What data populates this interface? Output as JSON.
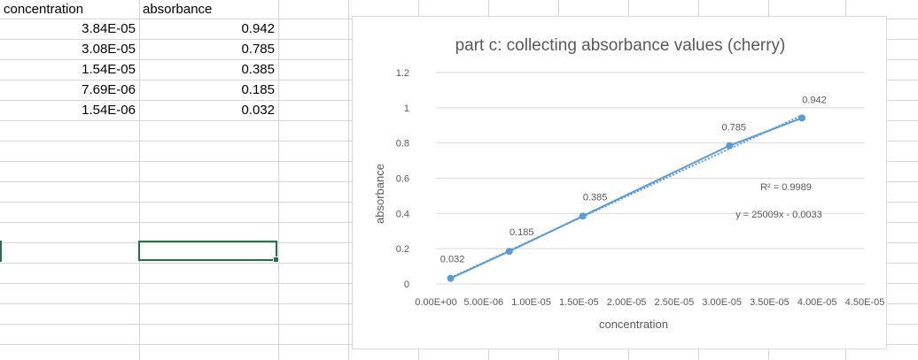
{
  "sheet": {
    "headers": {
      "concentration": "concentration",
      "absorbance": "absorbance"
    },
    "rows": [
      {
        "concentration": "3.84E-05",
        "absorbance": "0.942"
      },
      {
        "concentration": "3.08E-05",
        "absorbance": "0.785"
      },
      {
        "concentration": "1.54E-05",
        "absorbance": "0.385"
      },
      {
        "concentration": "7.69E-06",
        "absorbance": "0.185"
      },
      {
        "concentration": "1.54E-06",
        "absorbance": "0.032"
      }
    ],
    "selection_color": "#217346"
  },
  "chart_data": {
    "type": "scatter",
    "title": "part c: collecting absorbance values (cherry)",
    "xlabel": "concentration",
    "ylabel": "absorbance",
    "xlim": [
      0,
      4.5e-05
    ],
    "ylim": [
      0,
      1.2
    ],
    "xticks": [
      0,
      5e-06,
      1e-05,
      1.5e-05,
      2e-05,
      2.5e-05,
      3e-05,
      3.5e-05,
      4e-05,
      4.5e-05
    ],
    "xtick_labels": [
      "0.00E+00",
      "5.00E-06",
      "1.00E-05",
      "1.50E-05",
      "2.00E-05",
      "2.50E-05",
      "3.00E-05",
      "3.50E-05",
      "4.00E-05",
      "4.50E-05"
    ],
    "yticks": [
      0,
      0.2,
      0.4,
      0.6,
      0.8,
      1,
      1.2
    ],
    "ytick_labels": [
      "0",
      "0.2",
      "0.4",
      "0.6",
      "0.8",
      "1",
      "1.2"
    ],
    "grid": true,
    "series": [
      {
        "x": [
          1.54e-06,
          7.69e-06,
          1.54e-05,
          3.08e-05,
          3.84e-05
        ],
        "y": [
          0.032,
          0.185,
          0.385,
          0.785,
          0.942
        ],
        "labels": [
          "0.032",
          "0.185",
          "0.385",
          "0.785",
          "0.942"
        ],
        "color": "#5b9bd5",
        "connected": true
      }
    ],
    "trendline": {
      "type": "linear",
      "slope": 25009,
      "intercept": -0.0033,
      "equation": "y = 25009x - 0.0033",
      "r_squared": "R² = 0.9989",
      "style": "dotted",
      "color": "#5b9bd5"
    },
    "colors": {
      "gridline": "#d9d9d9",
      "tick_text": "#595959",
      "title_text": "#595959"
    }
  }
}
